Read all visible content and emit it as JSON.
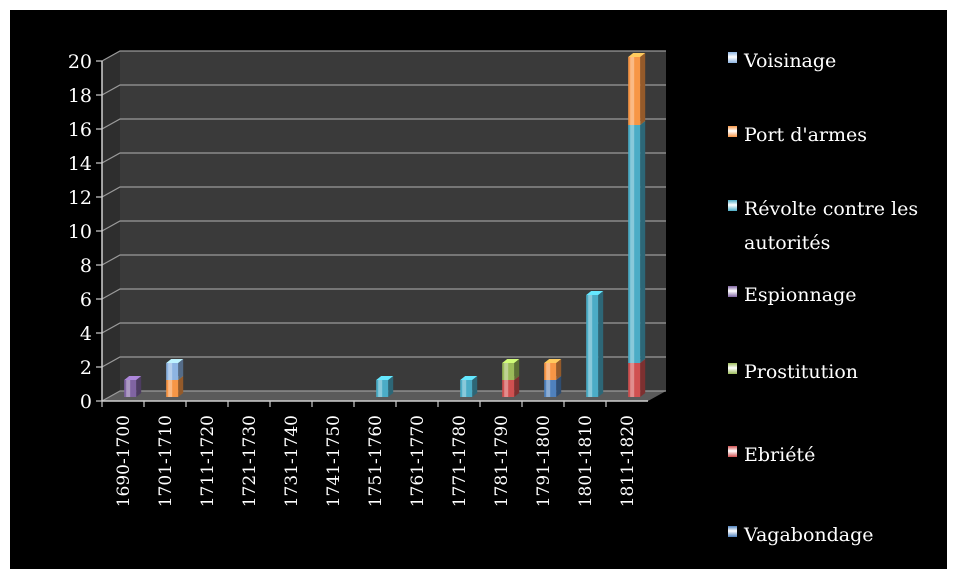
{
  "chart_data": {
    "type": "bar",
    "stacked": true,
    "three_d": true,
    "categories": [
      "1690-1700",
      "1701-1710",
      "1711-1720",
      "1721-1730",
      "1731-1740",
      "1741-1750",
      "1751-1760",
      "1761-1770",
      "1771-1780",
      "1781-1790",
      "1791-1800",
      "1801-1810",
      "1811-1820"
    ],
    "series": [
      {
        "name": "Vagabondage",
        "color": "#4f81bd",
        "values": [
          0,
          0,
          0,
          0,
          0,
          0,
          0,
          0,
          0,
          0,
          1,
          0,
          0
        ]
      },
      {
        "name": "Ebriété",
        "color": "#d05050",
        "values": [
          0,
          0,
          0,
          0,
          0,
          0,
          0,
          0,
          0,
          1,
          0,
          0,
          2
        ]
      },
      {
        "name": "Prostitution",
        "color": "#9bbb59",
        "values": [
          0,
          0,
          0,
          0,
          0,
          0,
          0,
          0,
          0,
          1,
          0,
          0,
          0
        ]
      },
      {
        "name": "Espionnage",
        "color": "#8064a2",
        "values": [
          1,
          0,
          0,
          0,
          0,
          0,
          0,
          0,
          0,
          0,
          0,
          0,
          0
        ]
      },
      {
        "name": "Révolte contre les autorités",
        "color": "#4bacc6",
        "values": [
          0,
          0,
          0,
          0,
          0,
          0,
          1,
          0,
          1,
          0,
          0,
          6,
          14
        ]
      },
      {
        "name": "Port d'armes",
        "color": "#f79646",
        "values": [
          0,
          1,
          0,
          0,
          0,
          0,
          0,
          0,
          0,
          0,
          1,
          0,
          4
        ]
      },
      {
        "name": "Voisinage",
        "color": "#8db4e2",
        "values": [
          0,
          1,
          0,
          0,
          0,
          0,
          0,
          0,
          0,
          0,
          0,
          0,
          0
        ]
      }
    ],
    "legend_order": [
      "Voisinage",
      "Port d'armes",
      "Révolte contre les autorités",
      "Espionnage",
      "Prostitution",
      "Ebriété",
      "Vagabondage"
    ],
    "y_ticks": [
      "0",
      "2",
      "4",
      "6",
      "8",
      "10",
      "12",
      "14",
      "16",
      "18",
      "20"
    ],
    "ylim": [
      0,
      20
    ],
    "title": "",
    "xlabel": "",
    "ylabel": "",
    "grid": true,
    "legend_position": "right",
    "background": "#000000",
    "wall_color": "#3a3a3a"
  },
  "legend": {
    "items": [
      {
        "label": "Voisinage",
        "color": "#8db4e2"
      },
      {
        "label": "Port d'armes",
        "color": "#f79646"
      },
      {
        "label": "Révolte contre les autorités",
        "color": "#4bacc6"
      },
      {
        "label": "Espionnage",
        "color": "#8064a2"
      },
      {
        "label": "Prostitution",
        "color": "#9bbb59"
      },
      {
        "label": "Ebriété",
        "color": "#d05050"
      },
      {
        "label": "Vagabondage",
        "color": "#4f81bd"
      }
    ]
  }
}
